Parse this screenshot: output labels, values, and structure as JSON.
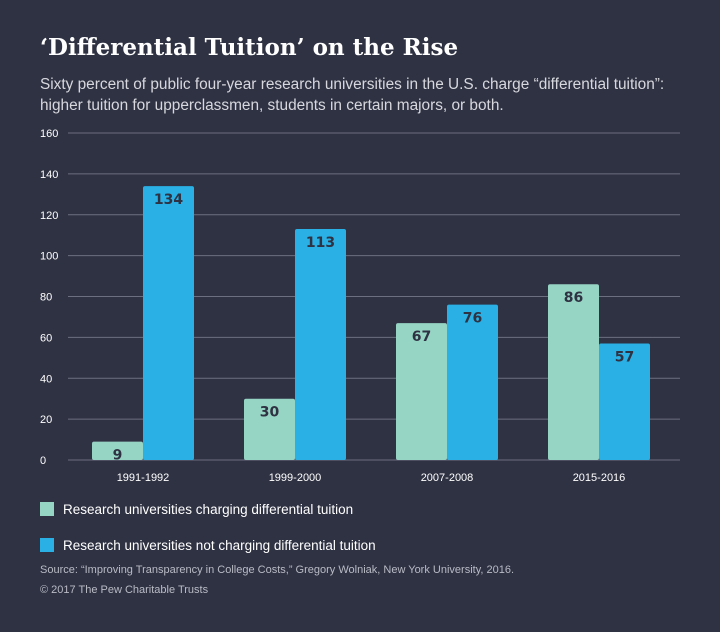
{
  "colors": {
    "background": "#2f3243",
    "series_charging": "#96d4c4",
    "series_not_charging": "#2ab0e4",
    "grid": "#6c6f80",
    "value_label": "#2f3243"
  },
  "chart_data": {
    "type": "bar",
    "title": "‘Differential Tuition’ on the Rise",
    "subtitle": "Sixty percent of public four-year research universities in the U.S. charge “differential tuition”: higher tuition for upperclassmen, students in certain majors, or both.",
    "categories": [
      "1991-1992",
      "1999-2000",
      "2007-2008",
      "2015-2016"
    ],
    "series": [
      {
        "name": "Research universities charging differential tuition",
        "values": [
          9,
          30,
          67,
          86
        ]
      },
      {
        "name": "Research universities not charging differential tuition",
        "values": [
          134,
          113,
          76,
          57
        ]
      }
    ],
    "ylim": [
      0,
      160
    ],
    "yticks": [
      0,
      20,
      40,
      60,
      80,
      100,
      120,
      140,
      160
    ],
    "grid": true,
    "legend_position": "bottom-left",
    "source": "Source: “Improving Transparency in College Costs,” Gregory Wolniak, New York University, 2016.",
    "copyright": "© 2017 The Pew Charitable Trusts"
  }
}
